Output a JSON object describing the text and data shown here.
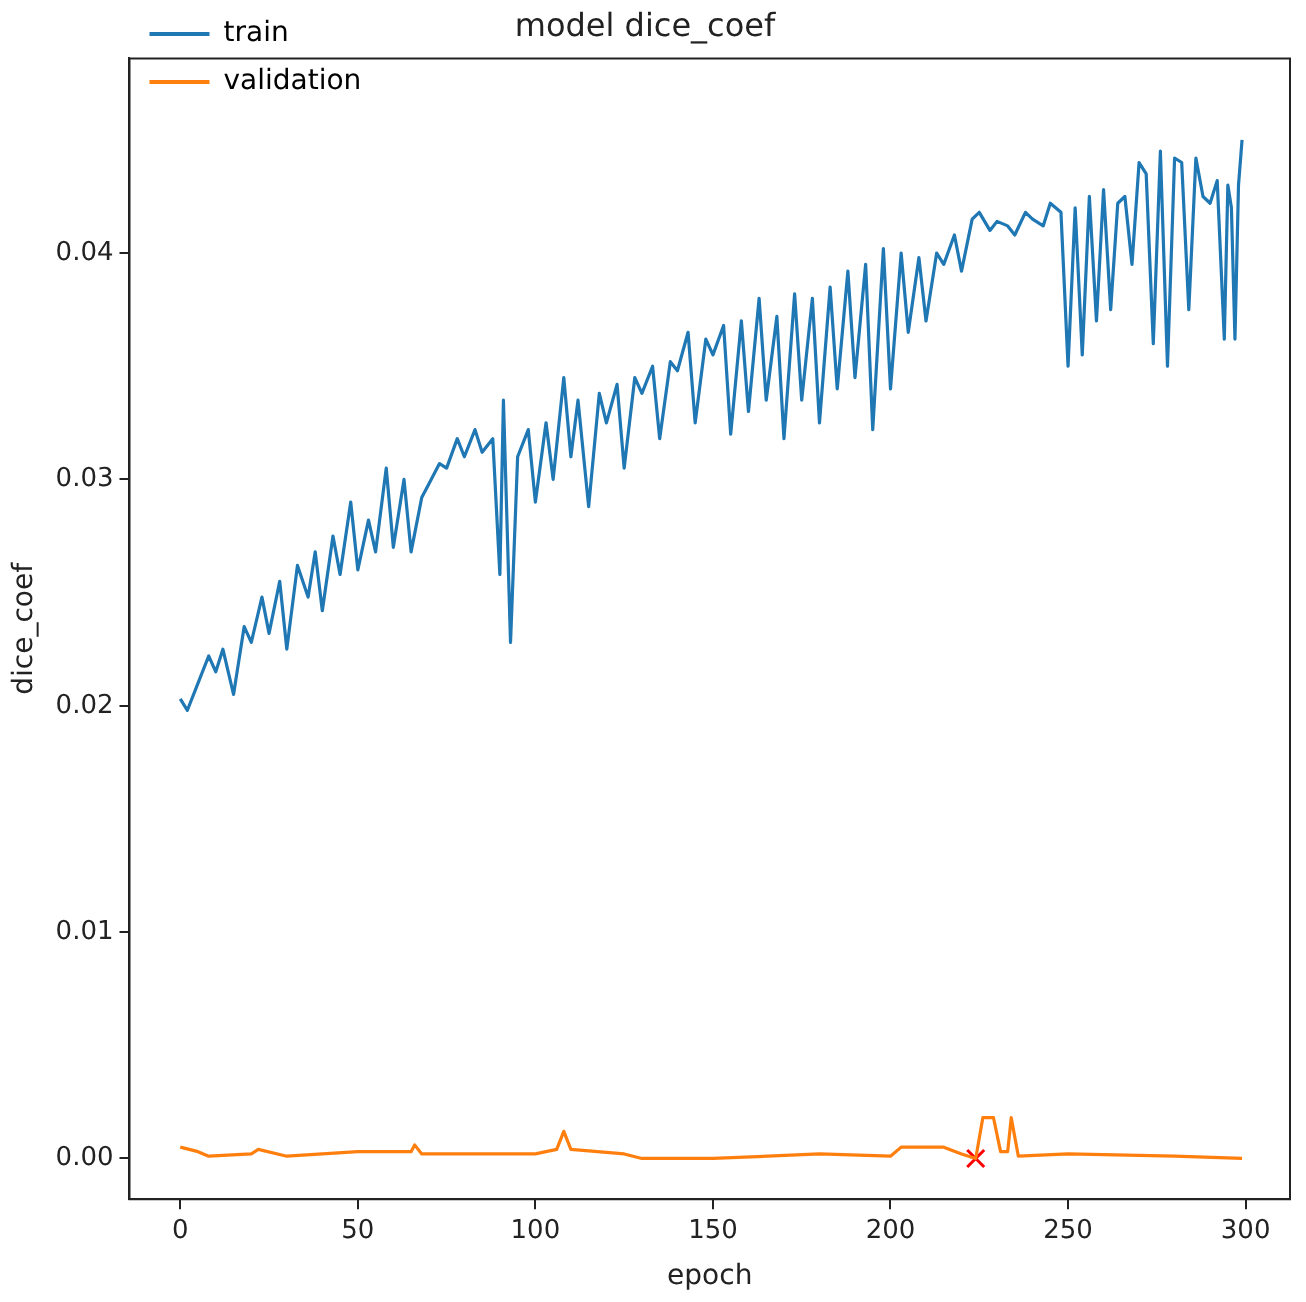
{
  "chart_data": {
    "type": "line",
    "title": "model dice_coef",
    "xlabel": "epoch",
    "ylabel": "dice_coef",
    "xlim": [
      -14.3,
      312.5
    ],
    "ylim": [
      -0.0018,
      0.0486
    ],
    "xticks": [
      0,
      50,
      100,
      150,
      200,
      250,
      300
    ],
    "yticks": [
      {
        "value": 0,
        "label": "0.00"
      },
      {
        "value": 0.01,
        "label": "0.01"
      },
      {
        "value": 0.02,
        "label": "0.02"
      },
      {
        "value": 0.03,
        "label": "0.03"
      },
      {
        "value": 0.04,
        "label": "0.04"
      }
    ],
    "grid": false,
    "legend": "top left",
    "marker": "none",
    "line_style": "solid",
    "series": [
      {
        "name": "train",
        "color": "#1f77b4",
        "x": [
          0,
          2,
          5,
          8,
          10,
          12,
          15,
          18,
          20,
          23,
          25,
          28,
          30,
          33,
          36,
          38,
          40,
          43,
          45,
          48,
          50,
          53,
          55,
          58,
          60,
          63,
          65,
          68,
          70,
          73,
          75,
          78,
          80,
          83,
          85,
          88,
          90,
          91,
          93,
          95,
          98,
          100,
          103,
          105,
          108,
          110,
          112,
          115,
          118,
          120,
          123,
          125,
          128,
          130,
          133,
          135,
          138,
          140,
          143,
          145,
          148,
          150,
          153,
          155,
          158,
          160,
          163,
          165,
          168,
          170,
          173,
          175,
          178,
          180,
          183,
          185,
          188,
          190,
          193,
          195,
          198,
          200,
          203,
          205,
          208,
          210,
          213,
          215,
          218,
          220,
          223,
          225,
          228,
          230,
          233,
          235,
          238,
          240,
          243,
          245,
          248,
          250,
          252,
          254,
          256,
          258,
          260,
          262,
          264,
          266,
          268,
          270,
          272,
          274,
          276,
          278,
          280,
          282,
          284,
          286,
          288,
          290,
          292,
          294,
          295,
          296,
          297,
          298,
          299
        ],
        "values": [
          0.0203,
          0.0198,
          0.021,
          0.0222,
          0.0215,
          0.0225,
          0.0205,
          0.0235,
          0.0228,
          0.0248,
          0.0232,
          0.0255,
          0.0225,
          0.0262,
          0.0248,
          0.0268,
          0.0242,
          0.0275,
          0.0258,
          0.029,
          0.026,
          0.0282,
          0.0268,
          0.0305,
          0.027,
          0.03,
          0.0268,
          0.0292,
          0.0298,
          0.0307,
          0.0305,
          0.0318,
          0.031,
          0.0322,
          0.0312,
          0.0318,
          0.0258,
          0.0335,
          0.0228,
          0.031,
          0.0322,
          0.029,
          0.0325,
          0.03,
          0.0345,
          0.031,
          0.0335,
          0.0288,
          0.0338,
          0.0325,
          0.0342,
          0.0305,
          0.0345,
          0.0338,
          0.035,
          0.0318,
          0.0352,
          0.0348,
          0.0365,
          0.0325,
          0.0362,
          0.0355,
          0.0368,
          0.032,
          0.037,
          0.033,
          0.038,
          0.0335,
          0.0372,
          0.0318,
          0.0382,
          0.0335,
          0.038,
          0.0325,
          0.0385,
          0.034,
          0.0392,
          0.0345,
          0.0395,
          0.0322,
          0.0402,
          0.034,
          0.04,
          0.0365,
          0.0398,
          0.037,
          0.04,
          0.0395,
          0.0408,
          0.0392,
          0.0415,
          0.0418,
          0.041,
          0.0414,
          0.0412,
          0.0408,
          0.0418,
          0.0415,
          0.0412,
          0.0422,
          0.0418,
          0.035,
          0.042,
          0.0355,
          0.0425,
          0.037,
          0.0428,
          0.0375,
          0.0422,
          0.0425,
          0.0395,
          0.044,
          0.0435,
          0.036,
          0.0445,
          0.035,
          0.0442,
          0.044,
          0.0375,
          0.0442,
          0.0425,
          0.0422,
          0.0432,
          0.0362,
          0.043,
          0.042,
          0.0362,
          0.043,
          0.045
        ]
      },
      {
        "name": "validation",
        "color": "#ff7f0e",
        "x": [
          0,
          5,
          8,
          20,
          22,
          30,
          40,
          50,
          65,
          66,
          68,
          100,
          106,
          108,
          110,
          125,
          130,
          150,
          180,
          200,
          203,
          215,
          220,
          224,
          226,
          229,
          231,
          233,
          234,
          236,
          250,
          280,
          299
        ],
        "values": [
          0.0005,
          0.0003,
          0.0001,
          0.0002,
          0.0004,
          0.0001,
          0.0002,
          0.0003,
          0.0003,
          0.0006,
          0.0002,
          0.0002,
          0.0004,
          0.0012,
          0.0004,
          0.0002,
          0.0,
          0.0,
          0.0002,
          0.0001,
          0.0005,
          0.0005,
          0.0002,
          0.0,
          0.0018,
          0.0018,
          0.0003,
          0.0003,
          0.0018,
          0.0001,
          0.0002,
          0.0001,
          0.0
        ]
      },
      {
        "type": "scatter",
        "marker": "cross",
        "color": "#ff0000",
        "x": [
          224
        ],
        "values": [
          0.0
        ]
      }
    ]
  }
}
